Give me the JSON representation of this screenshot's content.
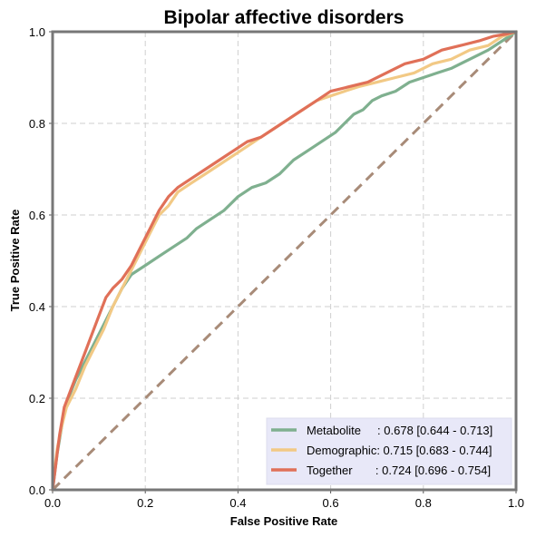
{
  "chart_data": {
    "type": "line",
    "title": "Bipolar affective disorders",
    "xlabel": "False Positive Rate",
    "ylabel": "True Positive Rate",
    "xlim": [
      0,
      1
    ],
    "ylim": [
      0,
      1
    ],
    "x_ticks": [
      "0.0",
      "0.2",
      "0.4",
      "0.6",
      "0.8",
      "1.0"
    ],
    "y_ticks": [
      "0.0",
      "0.2",
      "0.4",
      "0.6",
      "0.8",
      "1.0"
    ],
    "grid": true,
    "legend_position": "bottom-right",
    "legend_bg": "#e8e8f8",
    "diagonal": {
      "x": [
        0,
        1
      ],
      "y": [
        0,
        1
      ],
      "color": "#a88b78",
      "style": "dashed"
    },
    "series": [
      {
        "name": "Metabolite",
        "legend_label": "Metabolite     : 0.678 [0.644 - 0.713]",
        "color": "#7fb08f",
        "x": [
          0,
          0.005,
          0.01,
          0.02,
          0.03,
          0.05,
          0.07,
          0.09,
          0.11,
          0.13,
          0.15,
          0.17,
          0.2,
          0.23,
          0.26,
          0.29,
          0.31,
          0.34,
          0.37,
          0.4,
          0.43,
          0.46,
          0.49,
          0.52,
          0.55,
          0.58,
          0.61,
          0.63,
          0.65,
          0.67,
          0.69,
          0.71,
          0.74,
          0.77,
          0.8,
          0.83,
          0.86,
          0.9,
          0.94,
          0.97,
          1.0
        ],
        "y": [
          0,
          0.04,
          0.08,
          0.14,
          0.19,
          0.24,
          0.28,
          0.32,
          0.36,
          0.4,
          0.44,
          0.47,
          0.49,
          0.51,
          0.53,
          0.55,
          0.57,
          0.59,
          0.61,
          0.64,
          0.66,
          0.67,
          0.69,
          0.72,
          0.74,
          0.76,
          0.78,
          0.8,
          0.82,
          0.83,
          0.85,
          0.86,
          0.87,
          0.89,
          0.9,
          0.91,
          0.92,
          0.94,
          0.96,
          0.98,
          1.0
        ]
      },
      {
        "name": "Demographic",
        "legend_label": "Demographic: 0.715 [0.683 - 0.744]",
        "color": "#f2c985",
        "x": [
          0,
          0.005,
          0.01,
          0.02,
          0.03,
          0.05,
          0.07,
          0.09,
          0.11,
          0.13,
          0.15,
          0.17,
          0.19,
          0.21,
          0.23,
          0.25,
          0.27,
          0.3,
          0.33,
          0.36,
          0.39,
          0.42,
          0.45,
          0.48,
          0.51,
          0.54,
          0.57,
          0.6,
          0.63,
          0.66,
          0.7,
          0.74,
          0.78,
          0.82,
          0.86,
          0.9,
          0.94,
          0.97,
          1.0
        ],
        "y": [
          0,
          0.05,
          0.09,
          0.14,
          0.18,
          0.22,
          0.27,
          0.31,
          0.35,
          0.4,
          0.44,
          0.48,
          0.52,
          0.56,
          0.6,
          0.62,
          0.65,
          0.67,
          0.69,
          0.71,
          0.73,
          0.75,
          0.77,
          0.79,
          0.81,
          0.83,
          0.85,
          0.86,
          0.87,
          0.88,
          0.89,
          0.9,
          0.91,
          0.93,
          0.94,
          0.96,
          0.97,
          0.99,
          1.0
        ]
      },
      {
        "name": "Together",
        "legend_label": "Together       : 0.724 [0.696 - 0.754]",
        "color": "#e07058",
        "x": [
          0,
          0.005,
          0.01,
          0.015,
          0.025,
          0.04,
          0.055,
          0.07,
          0.085,
          0.1,
          0.115,
          0.13,
          0.15,
          0.17,
          0.19,
          0.21,
          0.23,
          0.25,
          0.27,
          0.3,
          0.33,
          0.36,
          0.39,
          0.42,
          0.45,
          0.48,
          0.51,
          0.54,
          0.57,
          0.6,
          0.64,
          0.68,
          0.72,
          0.76,
          0.8,
          0.84,
          0.88,
          0.92,
          0.95,
          0.98,
          1.0
        ],
        "y": [
          0,
          0.04,
          0.08,
          0.12,
          0.18,
          0.22,
          0.26,
          0.3,
          0.34,
          0.38,
          0.42,
          0.44,
          0.46,
          0.49,
          0.53,
          0.57,
          0.61,
          0.64,
          0.66,
          0.68,
          0.7,
          0.72,
          0.74,
          0.76,
          0.77,
          0.79,
          0.81,
          0.83,
          0.85,
          0.87,
          0.88,
          0.89,
          0.91,
          0.93,
          0.94,
          0.96,
          0.97,
          0.98,
          0.99,
          0.995,
          1.0
        ]
      }
    ]
  }
}
